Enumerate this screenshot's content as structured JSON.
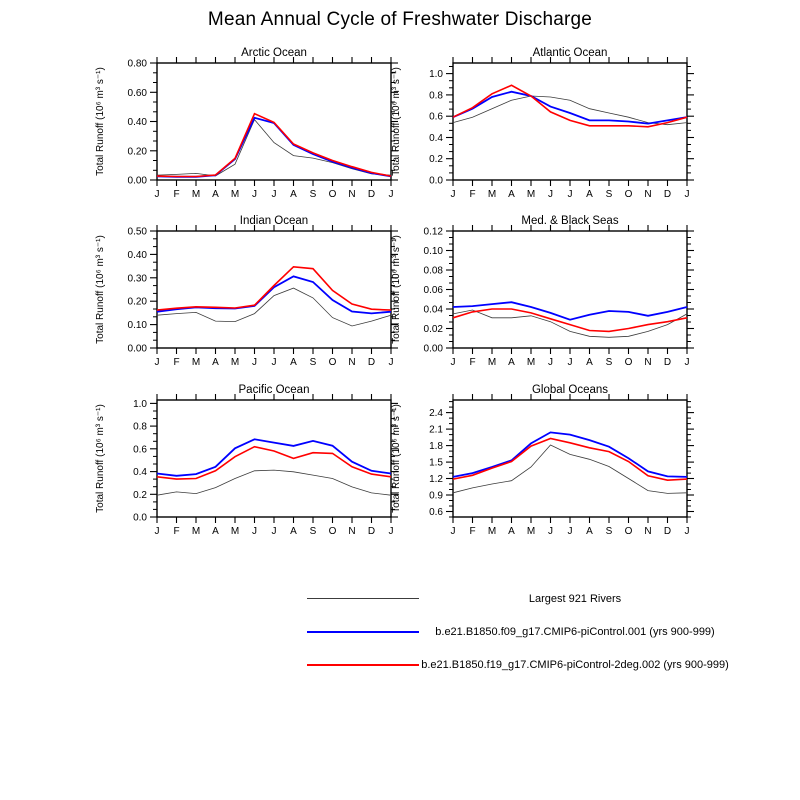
{
  "page": {
    "title": "Mean Annual Cycle of Freshwater Discharge",
    "background": "#ffffff"
  },
  "months": [
    "J",
    "F",
    "M",
    "A",
    "M",
    "J",
    "J",
    "A",
    "S",
    "O",
    "N",
    "D",
    "J"
  ],
  "ylabel": "Total Runoff (10⁶ m³ s⁻¹)",
  "series_meta": [
    {
      "id": "obs",
      "label": "Largest 921 Rivers",
      "color": "#3c3c3c",
      "stroke_width": 0.8
    },
    {
      "id": "f09",
      "label": "b.e21.B1850.f09_g17.CMIP6-piControl.001 (yrs 900-999)",
      "color": "#0000ff",
      "stroke_width": 1.8
    },
    {
      "id": "f19",
      "label": "b.e21.B1850.f19_g17.CMIP6-piControl-2deg.002 (yrs 900-999)",
      "color": "#ff0000",
      "stroke_width": 1.6
    }
  ],
  "legend": {
    "position": "bottom-center"
  },
  "chart_data": [
    {
      "id": "arctic-ocean",
      "type": "line",
      "title": "Arctic Ocean",
      "categories": [
        "J",
        "F",
        "M",
        "A",
        "M",
        "J",
        "J",
        "A",
        "S",
        "O",
        "N",
        "D",
        "J"
      ],
      "xlabel": "",
      "ylabel": "Total Runoff (10⁶ m³ s⁻¹)",
      "ylim": [
        0,
        0.8
      ],
      "grid": false,
      "yticks": [
        0.0,
        0.2,
        0.4,
        0.6,
        0.8
      ],
      "ytick_labels": [
        "0.00",
        "0.20",
        "0.40",
        "0.60",
        "0.80"
      ],
      "minor_tick_step": 0.0667,
      "series": [
        {
          "name": "Largest 921 Rivers",
          "values": [
            0.033,
            0.038,
            0.045,
            0.028,
            0.108,
            0.413,
            0.256,
            0.167,
            0.15,
            0.119,
            0.077,
            0.042,
            0.033
          ]
        },
        {
          "name": "b.e21.B1850.f09_g17.CMIP6-piControl.001 (yrs 900-999)",
          "values": [
            0.025,
            0.022,
            0.022,
            0.032,
            0.143,
            0.425,
            0.39,
            0.24,
            0.178,
            0.126,
            0.084,
            0.047,
            0.025
          ]
        },
        {
          "name": "b.e21.B1850.f19_g17.CMIP6-piControl-2deg.002 (yrs 900-999)",
          "values": [
            0.027,
            0.024,
            0.024,
            0.034,
            0.148,
            0.453,
            0.394,
            0.246,
            0.185,
            0.133,
            0.091,
            0.052,
            0.027
          ]
        }
      ]
    },
    {
      "id": "atlantic-ocean",
      "type": "line",
      "title": "Atlantic Ocean",
      "categories": [
        "J",
        "F",
        "M",
        "A",
        "M",
        "J",
        "J",
        "A",
        "S",
        "O",
        "N",
        "D",
        "J"
      ],
      "xlabel": "",
      "ylabel": "Total Runoff (10⁶ m³ s⁻¹)",
      "ylim": [
        0,
        1.1
      ],
      "grid": false,
      "yticks": [
        0.0,
        0.2,
        0.4,
        0.6,
        0.8,
        1.0
      ],
      "ytick_labels": [
        "0.0",
        "0.2",
        "0.4",
        "0.6",
        "0.8",
        "1.0"
      ],
      "minor_tick_step": 0.0667,
      "series": [
        {
          "name": "Largest 921 Rivers",
          "values": [
            0.54,
            0.59,
            0.67,
            0.75,
            0.79,
            0.78,
            0.75,
            0.67,
            0.63,
            0.59,
            0.54,
            0.52,
            0.54
          ]
        },
        {
          "name": "b.e21.B1850.f09_g17.CMIP6-piControl.001 (yrs 900-999)",
          "values": [
            0.59,
            0.67,
            0.78,
            0.83,
            0.79,
            0.69,
            0.63,
            0.56,
            0.56,
            0.55,
            0.53,
            0.56,
            0.59
          ]
        },
        {
          "name": "b.e21.B1850.f19_g17.CMIP6-piControl-2deg.002 (yrs 900-999)",
          "values": [
            0.59,
            0.68,
            0.81,
            0.89,
            0.79,
            0.64,
            0.56,
            0.51,
            0.51,
            0.51,
            0.5,
            0.54,
            0.59
          ]
        }
      ]
    },
    {
      "id": "indian-ocean",
      "type": "line",
      "title": "Indian Ocean",
      "categories": [
        "J",
        "F",
        "M",
        "A",
        "M",
        "J",
        "J",
        "A",
        "S",
        "O",
        "N",
        "D",
        "J"
      ],
      "xlabel": "",
      "ylabel": "Total Runoff (10⁶ m³ s⁻¹)",
      "ylim": [
        0,
        0.5
      ],
      "grid": false,
      "yticks": [
        0.0,
        0.1,
        0.2,
        0.3,
        0.4,
        0.5
      ],
      "ytick_labels": [
        "0.00",
        "0.10",
        "0.20",
        "0.30",
        "0.40",
        "0.50"
      ],
      "minor_tick_step": 0.0333,
      "series": [
        {
          "name": "Largest 921 Rivers",
          "values": [
            0.14,
            0.147,
            0.152,
            0.115,
            0.113,
            0.147,
            0.224,
            0.256,
            0.214,
            0.13,
            0.094,
            0.115,
            0.14
          ]
        },
        {
          "name": "b.e21.B1850.f09_g17.CMIP6-piControl.001 (yrs 900-999)",
          "values": [
            0.155,
            0.166,
            0.174,
            0.17,
            0.169,
            0.18,
            0.26,
            0.306,
            0.282,
            0.205,
            0.156,
            0.148,
            0.155
          ]
        },
        {
          "name": "b.e21.B1850.f19_g17.CMIP6-piControl-2deg.002 (yrs 900-999)",
          "values": [
            0.162,
            0.17,
            0.176,
            0.174,
            0.171,
            0.183,
            0.267,
            0.347,
            0.339,
            0.246,
            0.188,
            0.166,
            0.162
          ]
        }
      ]
    },
    {
      "id": "med-black-seas",
      "type": "line",
      "title": "Med. & Black Seas",
      "categories": [
        "J",
        "F",
        "M",
        "A",
        "M",
        "J",
        "J",
        "A",
        "S",
        "O",
        "N",
        "D",
        "J"
      ],
      "xlabel": "",
      "ylabel": "Total Runoff (10⁶ m³ s⁻¹)",
      "ylim": [
        0,
        0.12
      ],
      "grid": false,
      "yticks": [
        0.0,
        0.02,
        0.04,
        0.06,
        0.08,
        0.1,
        0.12
      ],
      "ytick_labels": [
        "0.00",
        "0.02",
        "0.04",
        "0.06",
        "0.08",
        "0.10",
        "0.12"
      ],
      "minor_tick_step": 0.00667,
      "series": [
        {
          "name": "Largest 921 Rivers",
          "values": [
            0.035,
            0.039,
            0.031,
            0.031,
            0.033,
            0.027,
            0.017,
            0.012,
            0.011,
            0.012,
            0.017,
            0.024,
            0.035
          ]
        },
        {
          "name": "b.e21.B1850.f09_g17.CMIP6-piControl.001 (yrs 900-999)",
          "values": [
            0.042,
            0.043,
            0.045,
            0.047,
            0.042,
            0.036,
            0.029,
            0.034,
            0.038,
            0.037,
            0.033,
            0.037,
            0.042
          ]
        },
        {
          "name": "b.e21.B1850.f19_g17.CMIP6-piControl-2deg.002 (yrs 900-999)",
          "values": [
            0.031,
            0.037,
            0.04,
            0.04,
            0.036,
            0.03,
            0.024,
            0.018,
            0.017,
            0.02,
            0.024,
            0.027,
            0.031
          ]
        }
      ]
    },
    {
      "id": "pacific-ocean",
      "type": "line",
      "title": "Pacific Ocean",
      "categories": [
        "J",
        "F",
        "M",
        "A",
        "M",
        "J",
        "J",
        "A",
        "S",
        "O",
        "N",
        "D",
        "J"
      ],
      "xlabel": "",
      "ylabel": "Total Runoff (10⁶ m³ s⁻¹)",
      "ylim": [
        0,
        1.03
      ],
      "grid": false,
      "yticks": [
        0.0,
        0.2,
        0.4,
        0.6,
        0.8,
        1.0
      ],
      "ytick_labels": [
        "0.0",
        "0.2",
        "0.4",
        "0.6",
        "0.8",
        "1.0"
      ],
      "minor_tick_step": 0.0667,
      "series": [
        {
          "name": "Largest 921 Rivers",
          "values": [
            0.192,
            0.221,
            0.206,
            0.259,
            0.339,
            0.407,
            0.413,
            0.398,
            0.369,
            0.339,
            0.265,
            0.212,
            0.192
          ]
        },
        {
          "name": "b.e21.B1850.f09_g17.CMIP6-piControl.001 (yrs 900-999)",
          "values": [
            0.383,
            0.363,
            0.378,
            0.442,
            0.605,
            0.684,
            0.655,
            0.626,
            0.67,
            0.628,
            0.487,
            0.407,
            0.383
          ]
        },
        {
          "name": "b.e21.B1850.f19_g17.CMIP6-piControl-2deg.002 (yrs 900-999)",
          "values": [
            0.354,
            0.334,
            0.339,
            0.407,
            0.531,
            0.619,
            0.581,
            0.516,
            0.566,
            0.56,
            0.442,
            0.378,
            0.354
          ]
        }
      ]
    },
    {
      "id": "global-oceans",
      "type": "line",
      "title": "Global Oceans",
      "categories": [
        "J",
        "F",
        "M",
        "A",
        "M",
        "J",
        "J",
        "A",
        "S",
        "O",
        "N",
        "D",
        "J"
      ],
      "xlabel": "",
      "ylabel": "Total Runoff (10⁶ m³ s⁻¹)",
      "ylim": [
        0.5,
        2.63
      ],
      "grid": false,
      "yticks": [
        0.6,
        0.9,
        1.2,
        1.5,
        1.8,
        2.1,
        2.4
      ],
      "ytick_labels": [
        "0.6",
        "0.9",
        "1.2",
        "1.5",
        "1.8",
        "2.1",
        "2.4"
      ],
      "minor_tick_step": 0.1,
      "series": [
        {
          "name": "Largest 921 Rivers",
          "values": [
            0.94,
            1.03,
            1.1,
            1.16,
            1.41,
            1.81,
            1.64,
            1.55,
            1.42,
            1.2,
            0.98,
            0.93,
            0.94
          ]
        },
        {
          "name": "b.e21.B1850.f09_g17.CMIP6-piControl.001 (yrs 900-999)",
          "values": [
            1.23,
            1.3,
            1.41,
            1.53,
            1.84,
            2.04,
            2.0,
            1.9,
            1.78,
            1.57,
            1.33,
            1.24,
            1.23
          ]
        },
        {
          "name": "b.e21.B1850.f19_g17.CMIP6-piControl-2deg.002 (yrs 900-999)",
          "values": [
            1.19,
            1.26,
            1.39,
            1.51,
            1.79,
            1.93,
            1.85,
            1.76,
            1.69,
            1.51,
            1.25,
            1.17,
            1.19
          ]
        }
      ]
    }
  ]
}
